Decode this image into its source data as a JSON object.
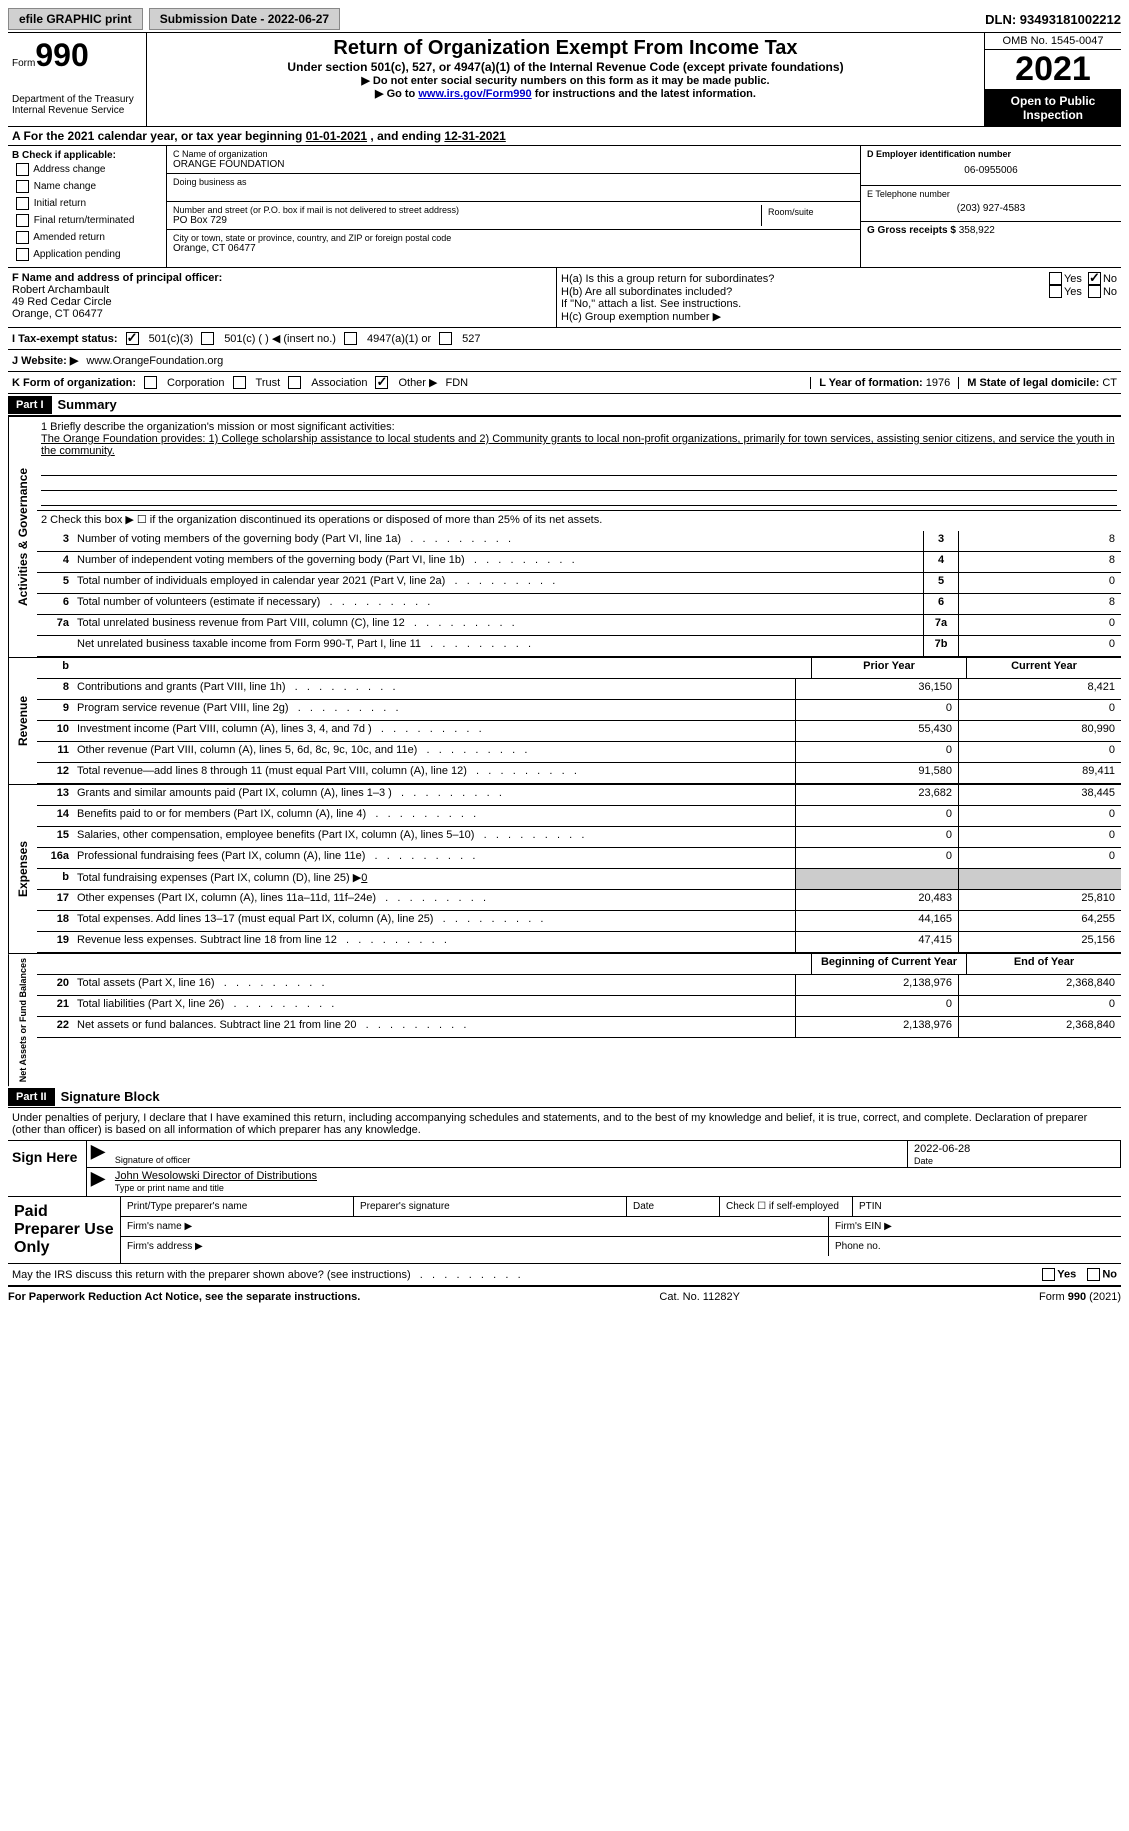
{
  "topbar": {
    "efile": "efile GRAPHIC print",
    "submission": "Submission Date - 2022-06-27",
    "dln": "DLN: 93493181002212"
  },
  "header": {
    "form_label": "Form",
    "form_number": "990",
    "title": "Return of Organization Exempt From Income Tax",
    "subtitle": "Under section 501(c), 527, or 4947(a)(1) of the Internal Revenue Code (except private foundations)",
    "instr1": "▶ Do not enter social security numbers on this form as it may be made public.",
    "instr2_pre": "▶ Go to ",
    "instr2_link": "www.irs.gov/Form990",
    "instr2_post": " for instructions and the latest information.",
    "dept": "Department of the Treasury",
    "irs": "Internal Revenue Service",
    "omb": "OMB No. 1545-0047",
    "year": "2021",
    "open": "Open to Public Inspection"
  },
  "period": {
    "label_a": "A For the 2021 calendar year, or tax year beginning ",
    "begin": "01-01-2021",
    "label_mid": "   , and ending ",
    "end": "12-31-2021"
  },
  "colB": {
    "label": "B Check if applicable:",
    "opts": [
      "Address change",
      "Name change",
      "Initial return",
      "Final return/terminated",
      "Amended return",
      "Application pending"
    ]
  },
  "colC": {
    "name_label": "C Name of organization",
    "name": "ORANGE FOUNDATION",
    "dba_label": "Doing business as",
    "addr_label": "Number and street (or P.O. box if mail is not delivered to street address)",
    "room_label": "Room/suite",
    "addr": "PO Box 729",
    "city_label": "City or town, state or province, country, and ZIP or foreign postal code",
    "city": "Orange, CT  06477"
  },
  "colD": {
    "ein_label": "D Employer identification number",
    "ein": "06-0955006",
    "phone_label": "E Telephone number",
    "phone": "(203) 927-4583",
    "receipts_label": "G Gross receipts $ ",
    "receipts": "358,922"
  },
  "sectionF": {
    "label": "F  Name and address of principal officer:",
    "name": "Robert Archambault",
    "addr1": "49 Red Cedar Circle",
    "addr2": "Orange, CT  06477"
  },
  "sectionH": {
    "ha": "H(a)  Is this a group return for subordinates?",
    "hb": "H(b)  Are all subordinates included?",
    "hb_note": "If \"No,\" attach a list. See instructions.",
    "hc": "H(c)  Group exemption number ▶",
    "yes": "Yes",
    "no": "No"
  },
  "sectionI": {
    "label": "I    Tax-exempt status:",
    "opt1": "501(c)(3)",
    "opt2": "501(c) (  ) ◀ (insert no.)",
    "opt3": "4947(a)(1) or",
    "opt4": "527"
  },
  "sectionJ": {
    "label": "J   Website: ▶",
    "value": "  www.OrangeFoundation.org"
  },
  "sectionK": {
    "label": "K Form of organization:",
    "corp": "Corporation",
    "trust": "Trust",
    "assoc": "Association",
    "other": "Other ▶",
    "other_val": "FDN",
    "l_label": "L Year of formation: ",
    "l_val": "1976",
    "m_label": "M State of legal domicile: ",
    "m_val": "CT"
  },
  "partI": {
    "tag": "Part I",
    "title": "Summary",
    "line1_label": "1   Briefly describe the organization's mission or most significant activities:",
    "mission": "The Orange Foundation provides: 1) College scholarship assistance to local students and 2) Community grants to local non-profit organizations, primarily for town services, assisting senior citizens, and service the youth in the community.",
    "line2": "2   Check this box ▶ ☐  if the organization discontinued its operations or disposed of more than 25% of its net assets.",
    "sections": {
      "gov": "Activities & Governance",
      "rev": "Revenue",
      "exp": "Expenses",
      "net": "Net Assets or Fund Balances"
    },
    "col_prior": "Prior Year",
    "col_current": "Current Year",
    "col_begin": "Beginning of Current Year",
    "col_end": "End of Year",
    "rows_gov": [
      {
        "n": "3",
        "d": "Number of voting members of the governing body (Part VI, line 1a)",
        "b": "3",
        "v": "8"
      },
      {
        "n": "4",
        "d": "Number of independent voting members of the governing body (Part VI, line 1b)",
        "b": "4",
        "v": "8"
      },
      {
        "n": "5",
        "d": "Total number of individuals employed in calendar year 2021 (Part V, line 2a)",
        "b": "5",
        "v": "0"
      },
      {
        "n": "6",
        "d": "Total number of volunteers (estimate if necessary)",
        "b": "6",
        "v": "8"
      },
      {
        "n": "7a",
        "d": "Total unrelated business revenue from Part VIII, column (C), line 12",
        "b": "7a",
        "v": "0"
      },
      {
        "n": "",
        "d": "Net unrelated business taxable income from Form 990-T, Part I, line 11",
        "b": "7b",
        "v": "0"
      }
    ],
    "rows_rev": [
      {
        "n": "8",
        "d": "Contributions and grants (Part VIII, line 1h)",
        "p": "36,150",
        "c": "8,421"
      },
      {
        "n": "9",
        "d": "Program service revenue (Part VIII, line 2g)",
        "p": "0",
        "c": "0"
      },
      {
        "n": "10",
        "d": "Investment income (Part VIII, column (A), lines 3, 4, and 7d )",
        "p": "55,430",
        "c": "80,990"
      },
      {
        "n": "11",
        "d": "Other revenue (Part VIII, column (A), lines 5, 6d, 8c, 9c, 10c, and 11e)",
        "p": "0",
        "c": "0"
      },
      {
        "n": "12",
        "d": "Total revenue—add lines 8 through 11 (must equal Part VIII, column (A), line 12)",
        "p": "91,580",
        "c": "89,411"
      }
    ],
    "rows_exp": [
      {
        "n": "13",
        "d": "Grants and similar amounts paid (Part IX, column (A), lines 1–3 )",
        "p": "23,682",
        "c": "38,445"
      },
      {
        "n": "14",
        "d": "Benefits paid to or for members (Part IX, column (A), line 4)",
        "p": "0",
        "c": "0"
      },
      {
        "n": "15",
        "d": "Salaries, other compensation, employee benefits (Part IX, column (A), lines 5–10)",
        "p": "0",
        "c": "0"
      },
      {
        "n": "16a",
        "d": "Professional fundraising fees (Part IX, column (A), line 11e)",
        "p": "0",
        "c": "0"
      }
    ],
    "row_16b": {
      "n": "b",
      "d": "Total fundraising expenses (Part IX, column (D), line 25) ▶",
      "v": "0"
    },
    "rows_exp2": [
      {
        "n": "17",
        "d": "Other expenses (Part IX, column (A), lines 11a–11d, 11f–24e)",
        "p": "20,483",
        "c": "25,810"
      },
      {
        "n": "18",
        "d": "Total expenses. Add lines 13–17 (must equal Part IX, column (A), line 25)",
        "p": "44,165",
        "c": "64,255"
      },
      {
        "n": "19",
        "d": "Revenue less expenses. Subtract line 18 from line 12",
        "p": "47,415",
        "c": "25,156"
      }
    ],
    "rows_net": [
      {
        "n": "20",
        "d": "Total assets (Part X, line 16)",
        "p": "2,138,976",
        "c": "2,368,840"
      },
      {
        "n": "21",
        "d": "Total liabilities (Part X, line 26)",
        "p": "0",
        "c": "0"
      },
      {
        "n": "22",
        "d": "Net assets or fund balances. Subtract line 21 from line 20",
        "p": "2,138,976",
        "c": "2,368,840"
      }
    ]
  },
  "partII": {
    "tag": "Part II",
    "title": "Signature Block",
    "penalty": "Under penalties of perjury, I declare that I have examined this return, including accompanying schedules and statements, and to the best of my knowledge and belief, it is true, correct, and complete. Declaration of preparer (other than officer) is based on all information of which preparer has any knowledge.",
    "sign_here": "Sign Here",
    "sig_officer": "Signature of officer",
    "date_label": "Date",
    "sig_date": "2022-06-28",
    "name_title": "John Wesolowski  Director of Distributions",
    "type_print": "Type or print name and title"
  },
  "paid": {
    "label": "Paid Preparer Use Only",
    "print_name": "Print/Type preparer's name",
    "sig": "Preparer's signature",
    "date": "Date",
    "check_self": "Check ☐ if self-employed",
    "ptin": "PTIN",
    "firm_name": "Firm's name    ▶",
    "firm_ein": "Firm's EIN ▶",
    "firm_addr": "Firm's address ▶",
    "phone": "Phone no."
  },
  "footer": {
    "discuss": "May the IRS discuss this return with the preparer shown above? (see instructions)",
    "paperwork": "For Paperwork Reduction Act Notice, see the separate instructions.",
    "cat": "Cat. No. 11282Y",
    "form": "Form 990 (2021)"
  }
}
